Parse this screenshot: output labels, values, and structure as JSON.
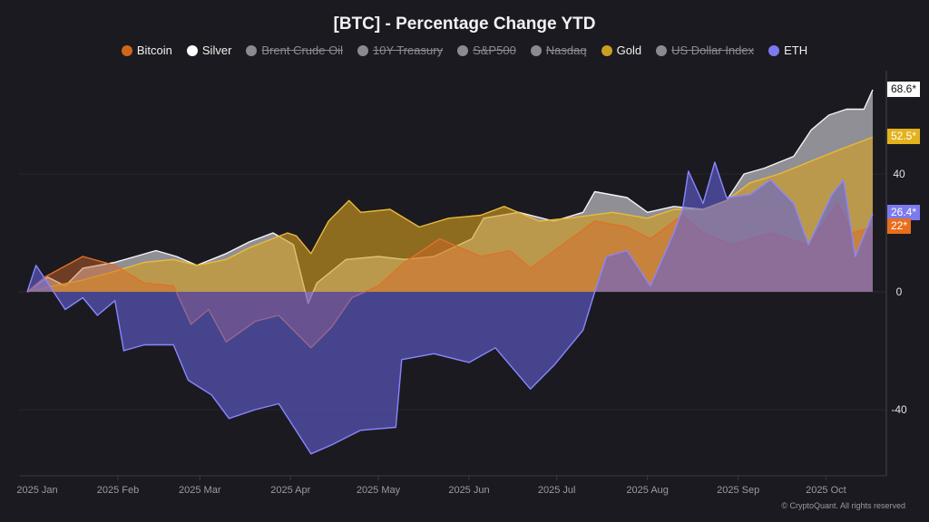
{
  "chart_data": {
    "type": "area",
    "title": "[BTC] - Percentage Change YTD",
    "xlim": [
      "2025-01-01",
      "2025-10-17"
    ],
    "ylim": [
      -62,
      72
    ],
    "yticks": [
      40,
      0,
      -40
    ],
    "xticks": [
      {
        "date": "2025-01-01",
        "label": "2025 Jan"
      },
      {
        "date": "2025-02-01",
        "label": "2025 Feb"
      },
      {
        "date": "2025-03-01",
        "label": "2025 Mar"
      },
      {
        "date": "2025-04-01",
        "label": "2025 Apr"
      },
      {
        "date": "2025-05-01",
        "label": "2025 May"
      },
      {
        "date": "2025-06-01",
        "label": "2025 Jun"
      },
      {
        "date": "2025-07-01",
        "label": "2025 Jul"
      },
      {
        "date": "2025-08-01",
        "label": "2025 Aug"
      },
      {
        "date": "2025-09-01",
        "label": "2025 Sep"
      },
      {
        "date": "2025-10-01",
        "label": "2025 Oct"
      }
    ],
    "grid": true,
    "legend_position": "top",
    "legend": [
      {
        "name": "Bitcoin",
        "color": "#d0661c",
        "visible": true
      },
      {
        "name": "Silver",
        "color": "#ffffff",
        "visible": true
      },
      {
        "name": "Brent Crude Oil",
        "color": "#8a8a90",
        "visible": false
      },
      {
        "name": "10Y Treasury",
        "color": "#8a8a90",
        "visible": false
      },
      {
        "name": "S&P500",
        "color": "#8a8a90",
        "visible": false
      },
      {
        "name": "Nasdaq",
        "color": "#8a8a90",
        "visible": false
      },
      {
        "name": "Gold",
        "color": "#c9a020",
        "visible": true
      },
      {
        "name": "US Dollar Index",
        "color": "#8a8a90",
        "visible": false
      },
      {
        "name": "ETH",
        "color": "#7d7af0",
        "visible": true
      }
    ],
    "series": [
      {
        "name": "Silver",
        "line": "#f4f4f6",
        "fill": "rgba(165,165,172,0.85)",
        "last_label": "68.6*",
        "badge_bg": "#ffffff",
        "badge_fg": "#111111",
        "points": [
          [
            "2025-01-01",
            0
          ],
          [
            "2025-01-08",
            5
          ],
          [
            "2025-01-14",
            2
          ],
          [
            "2025-01-20",
            8
          ],
          [
            "2025-01-31",
            10
          ],
          [
            "2025-02-07",
            12
          ],
          [
            "2025-02-14",
            14
          ],
          [
            "2025-02-21",
            12
          ],
          [
            "2025-02-28",
            9
          ],
          [
            "2025-03-10",
            13
          ],
          [
            "2025-03-18",
            17
          ],
          [
            "2025-03-26",
            20
          ],
          [
            "2025-04-02",
            16
          ],
          [
            "2025-04-07",
            -4
          ],
          [
            "2025-04-10",
            3
          ],
          [
            "2025-04-20",
            11
          ],
          [
            "2025-05-01",
            12
          ],
          [
            "2025-05-10",
            11
          ],
          [
            "2025-05-20",
            12
          ],
          [
            "2025-06-02",
            18
          ],
          [
            "2025-06-06",
            25
          ],
          [
            "2025-06-18",
            27
          ],
          [
            "2025-06-30",
            24
          ],
          [
            "2025-07-10",
            27
          ],
          [
            "2025-07-14",
            34
          ],
          [
            "2025-07-25",
            32
          ],
          [
            "2025-08-01",
            27
          ],
          [
            "2025-08-10",
            29
          ],
          [
            "2025-08-20",
            28
          ],
          [
            "2025-08-28",
            31
          ],
          [
            "2025-09-03",
            40
          ],
          [
            "2025-09-10",
            42
          ],
          [
            "2025-09-20",
            46
          ],
          [
            "2025-09-26",
            55
          ],
          [
            "2025-10-02",
            60
          ],
          [
            "2025-10-08",
            62
          ],
          [
            "2025-10-14",
            62
          ],
          [
            "2025-10-17",
            68.6
          ]
        ]
      },
      {
        "name": "Gold",
        "line": "#e9bb3a",
        "fill": "rgba(212,160,30,0.62)",
        "last_label": "52.5*",
        "badge_bg": "#e4b21e",
        "badge_fg": "#ffffff",
        "points": [
          [
            "2025-01-01",
            0
          ],
          [
            "2025-01-10",
            2
          ],
          [
            "2025-01-20",
            4
          ],
          [
            "2025-01-31",
            7
          ],
          [
            "2025-02-10",
            10
          ],
          [
            "2025-02-20",
            11
          ],
          [
            "2025-02-28",
            9
          ],
          [
            "2025-03-10",
            11
          ],
          [
            "2025-03-18",
            15
          ],
          [
            "2025-03-31",
            20
          ],
          [
            "2025-04-03",
            19
          ],
          [
            "2025-04-08",
            13
          ],
          [
            "2025-04-14",
            24
          ],
          [
            "2025-04-21",
            31
          ],
          [
            "2025-04-25",
            27
          ],
          [
            "2025-05-05",
            28
          ],
          [
            "2025-05-15",
            22
          ],
          [
            "2025-05-25",
            25
          ],
          [
            "2025-06-05",
            26
          ],
          [
            "2025-06-13",
            29
          ],
          [
            "2025-06-25",
            24
          ],
          [
            "2025-07-05",
            25
          ],
          [
            "2025-07-20",
            27
          ],
          [
            "2025-08-01",
            25
          ],
          [
            "2025-08-10",
            28
          ],
          [
            "2025-08-20",
            28
          ],
          [
            "2025-08-28",
            31
          ],
          [
            "2025-09-05",
            37
          ],
          [
            "2025-09-15",
            40
          ],
          [
            "2025-09-25",
            44
          ],
          [
            "2025-10-05",
            48
          ],
          [
            "2025-10-17",
            52.5
          ]
        ]
      },
      {
        "name": "Bitcoin",
        "line": "#e0702a",
        "fill": "rgba(214,104,40,0.45)",
        "last_label": "22*",
        "badge_bg": "#e86e1c",
        "badge_fg": "#ffffff",
        "points": [
          [
            "2025-01-01",
            0
          ],
          [
            "2025-01-07",
            5
          ],
          [
            "2025-01-20",
            12
          ],
          [
            "2025-01-31",
            9
          ],
          [
            "2025-02-10",
            3
          ],
          [
            "2025-02-20",
            2
          ],
          [
            "2025-02-26",
            -11
          ],
          [
            "2025-03-04",
            -6
          ],
          [
            "2025-03-10",
            -17
          ],
          [
            "2025-03-20",
            -10
          ],
          [
            "2025-03-28",
            -8
          ],
          [
            "2025-04-08",
            -19
          ],
          [
            "2025-04-15",
            -12
          ],
          [
            "2025-04-22",
            -2
          ],
          [
            "2025-05-01",
            2
          ],
          [
            "2025-05-10",
            10
          ],
          [
            "2025-05-22",
            18
          ],
          [
            "2025-06-05",
            12
          ],
          [
            "2025-06-15",
            14
          ],
          [
            "2025-06-22",
            8
          ],
          [
            "2025-07-03",
            16
          ],
          [
            "2025-07-14",
            24
          ],
          [
            "2025-07-25",
            22
          ],
          [
            "2025-08-02",
            18
          ],
          [
            "2025-08-13",
            26
          ],
          [
            "2025-08-20",
            20
          ],
          [
            "2025-08-30",
            16
          ],
          [
            "2025-09-12",
            20
          ],
          [
            "2025-09-25",
            16
          ],
          [
            "2025-10-05",
            30
          ],
          [
            "2025-10-10",
            20
          ],
          [
            "2025-10-17",
            22
          ]
        ]
      },
      {
        "name": "ETH",
        "line": "#8a86ff",
        "fill": "rgba(100,96,215,0.6)",
        "last_label": "26.4*",
        "badge_bg": "#7d7af0",
        "badge_fg": "#ffffff",
        "points": [
          [
            "2025-01-01",
            0
          ],
          [
            "2025-01-04",
            9
          ],
          [
            "2025-01-08",
            3
          ],
          [
            "2025-01-14",
            -6
          ],
          [
            "2025-01-20",
            -2
          ],
          [
            "2025-01-25",
            -8
          ],
          [
            "2025-01-31",
            -3
          ],
          [
            "2025-02-03",
            -20
          ],
          [
            "2025-02-10",
            -18
          ],
          [
            "2025-02-20",
            -18
          ],
          [
            "2025-02-25",
            -30
          ],
          [
            "2025-03-05",
            -35
          ],
          [
            "2025-03-11",
            -43
          ],
          [
            "2025-03-20",
            -40
          ],
          [
            "2025-03-28",
            -38
          ],
          [
            "2025-04-08",
            -55
          ],
          [
            "2025-04-15",
            -52
          ],
          [
            "2025-04-25",
            -47
          ],
          [
            "2025-05-07",
            -46
          ],
          [
            "2025-05-09",
            -23
          ],
          [
            "2025-05-20",
            -21
          ],
          [
            "2025-06-01",
            -24
          ],
          [
            "2025-06-10",
            -19
          ],
          [
            "2025-06-22",
            -33
          ],
          [
            "2025-06-30",
            -25
          ],
          [
            "2025-07-10",
            -13
          ],
          [
            "2025-07-14",
            0
          ],
          [
            "2025-07-18",
            12
          ],
          [
            "2025-07-25",
            14
          ],
          [
            "2025-08-02",
            2
          ],
          [
            "2025-08-10",
            20
          ],
          [
            "2025-08-13",
            28
          ],
          [
            "2025-08-15",
            41
          ],
          [
            "2025-08-20",
            30
          ],
          [
            "2025-08-24",
            44
          ],
          [
            "2025-08-28",
            32
          ],
          [
            "2025-09-05",
            33
          ],
          [
            "2025-09-12",
            38
          ],
          [
            "2025-09-20",
            30
          ],
          [
            "2025-09-25",
            16
          ],
          [
            "2025-10-03",
            33
          ],
          [
            "2025-10-07",
            38
          ],
          [
            "2025-10-11",
            12
          ],
          [
            "2025-10-17",
            26.4
          ]
        ]
      }
    ]
  },
  "footer": {
    "copyright": "© CryptoQuant. All rights reserved"
  }
}
